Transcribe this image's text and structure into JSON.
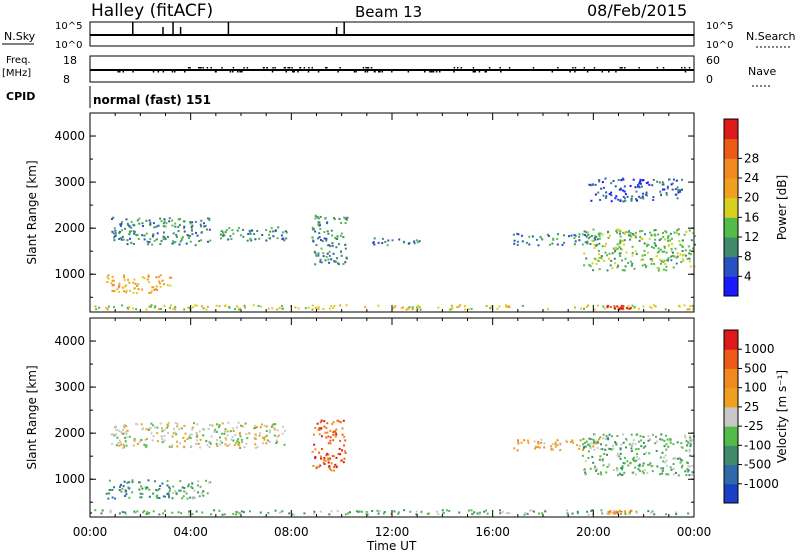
{
  "header": {
    "site_title": "Halley (fitACF)",
    "beam": "Beam 13",
    "date": "08/Feb/2015"
  },
  "strips": {
    "nsky": {
      "label": "N.Sky",
      "ticks": [
        "10^5",
        "10^0"
      ],
      "right_ticks": [
        "10^5",
        "10^0"
      ],
      "right_label": "N.Search"
    },
    "freq": {
      "label_top": "Freq.",
      "label_unit": "[MHz]",
      "ticks": [
        "18",
        "8"
      ],
      "right_ticks": [
        "60",
        "0"
      ],
      "right_label": "Nave"
    },
    "cpid": {
      "label": "CPID",
      "value": "normal (fast) 151"
    }
  },
  "chart_data": [
    {
      "type": "heatmap",
      "panel": "power",
      "ylabel": "Slant Range [km]",
      "yticks": [
        "1000",
        "2000",
        "3000",
        "4000"
      ],
      "ylim": [
        180,
        4500
      ],
      "xlim": [
        0,
        24
      ],
      "colorbar": {
        "label": "Power [dB]",
        "labels": [
          "4",
          "8",
          "12",
          "16",
          "20",
          "24",
          "28"
        ],
        "colors": [
          "#1a1aff",
          "#2b4fc4",
          "#3f8a6a",
          "#52bb4a",
          "#d8d020",
          "#f0a020",
          "#f08a20",
          "#ee5a18",
          "#dd1a1a"
        ]
      },
      "regions": [
        {
          "hours": [
            0.8,
            4.9
          ],
          "range_km": [
            1650,
            2250
          ],
          "level": 2
        },
        {
          "hours": [
            4.9,
            7.8
          ],
          "range_km": [
            1750,
            2050
          ],
          "level": 2
        },
        {
          "hours": [
            0.6,
            3.2
          ],
          "range_km": [
            600,
            1000
          ],
          "level": 5
        },
        {
          "hours": [
            8.8,
            10.2
          ],
          "range_km": [
            1200,
            2300
          ],
          "level": 2
        },
        {
          "hours": [
            11.2,
            13.5
          ],
          "range_km": [
            1650,
            1800
          ],
          "level": 2
        },
        {
          "hours": [
            16.8,
            20.2
          ],
          "range_km": [
            1650,
            1900
          ],
          "level": 2
        },
        {
          "hours": [
            19.5,
            24
          ],
          "range_km": [
            1100,
            2000
          ],
          "level": 3
        },
        {
          "hours": [
            19.8,
            23.5
          ],
          "range_km": [
            2600,
            3100
          ],
          "level": 1
        },
        {
          "hours": [
            0,
            24
          ],
          "range_km": [
            250,
            350
          ],
          "level": 4
        },
        {
          "hours": [
            20.5,
            21.5
          ],
          "range_km": [
            260,
            340
          ],
          "level": 8
        }
      ]
    },
    {
      "type": "heatmap",
      "panel": "velocity",
      "ylabel": "Slant Range [km]",
      "yticks": [
        "1000",
        "2000",
        "3000",
        "4000"
      ],
      "ylim": [
        180,
        4500
      ],
      "xlim": [
        0,
        24
      ],
      "xlabel": "Time UT",
      "xticks": [
        "00:00",
        "04:00",
        "08:00",
        "12:00",
        "16:00",
        "20:00",
        "00:00"
      ],
      "colorbar": {
        "label": "Velocity [m s⁻¹]",
        "labels": [
          "1000",
          "500",
          "100",
          "25",
          "-25",
          "-100",
          "-500",
          "-1000"
        ],
        "colors": [
          "#1a3fc4",
          "#2f6aa8",
          "#3f8a6a",
          "#52bb4a",
          "#c8c8c8",
          "#f0a020",
          "#f08a20",
          "#ee5a18",
          "#dd1a1a"
        ]
      },
      "regions": [
        {
          "hours": [
            0.8,
            7.8
          ],
          "range_km": [
            1700,
            2250
          ],
          "level": 4
        },
        {
          "hours": [
            0.6,
            3.2
          ],
          "range_km": [
            600,
            1000
          ],
          "level": 2
        },
        {
          "hours": [
            3.2,
            4.8
          ],
          "range_km": [
            600,
            1000
          ],
          "level": 3
        },
        {
          "hours": [
            8.8,
            10.2
          ],
          "range_km": [
            1200,
            2300
          ],
          "level": 7
        },
        {
          "hours": [
            16.8,
            20.2
          ],
          "range_km": [
            1650,
            1900
          ],
          "level": 5
        },
        {
          "hours": [
            19.5,
            24
          ],
          "range_km": [
            1100,
            2000
          ],
          "level": 3
        },
        {
          "hours": [
            0,
            24
          ],
          "range_km": [
            250,
            350
          ],
          "level": 3
        },
        {
          "hours": [
            20.5,
            21.5
          ],
          "range_km": [
            260,
            340
          ],
          "level": 6
        }
      ]
    }
  ]
}
